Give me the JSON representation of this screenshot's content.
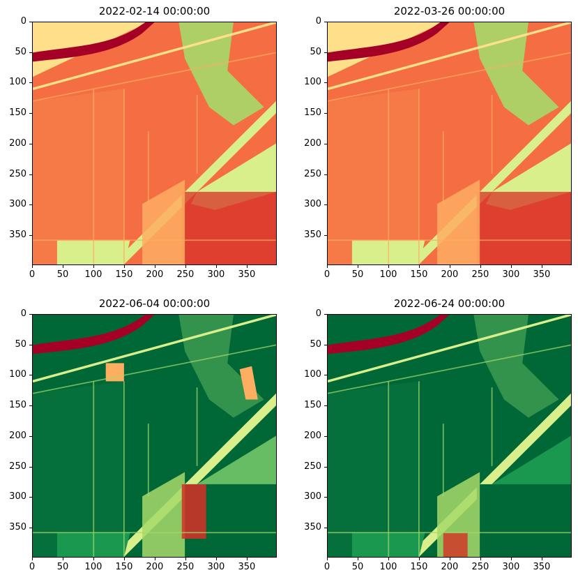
{
  "panels": [
    {
      "title": "2022-02-14 00:00:00",
      "theme": "winter"
    },
    {
      "title": "2022-03-26 00:00:00",
      "theme": "winter"
    },
    {
      "title": "2022-06-04 00:00:00",
      "theme": "summer"
    },
    {
      "title": "2022-06-24 00:00:00",
      "theme": "summer2"
    }
  ],
  "axes": {
    "x_ticks": [
      "0",
      "50",
      "100",
      "150",
      "200",
      "250",
      "300",
      "350"
    ],
    "y_ticks": [
      "0",
      "50",
      "100",
      "150",
      "200",
      "250",
      "300",
      "350"
    ],
    "range": [
      0,
      399
    ]
  },
  "colormap": {
    "name": "RdYlGn",
    "dark_red": "#a50026",
    "red": "#d73027",
    "orange": "#f46d43",
    "light_orange": "#fdae61",
    "yellow": "#fee08b",
    "light_green": "#d9ef8b",
    "green": "#a6d96a",
    "mid_green": "#66bd63",
    "dark_green": "#1a9850",
    "darkest_green": "#006837"
  }
}
